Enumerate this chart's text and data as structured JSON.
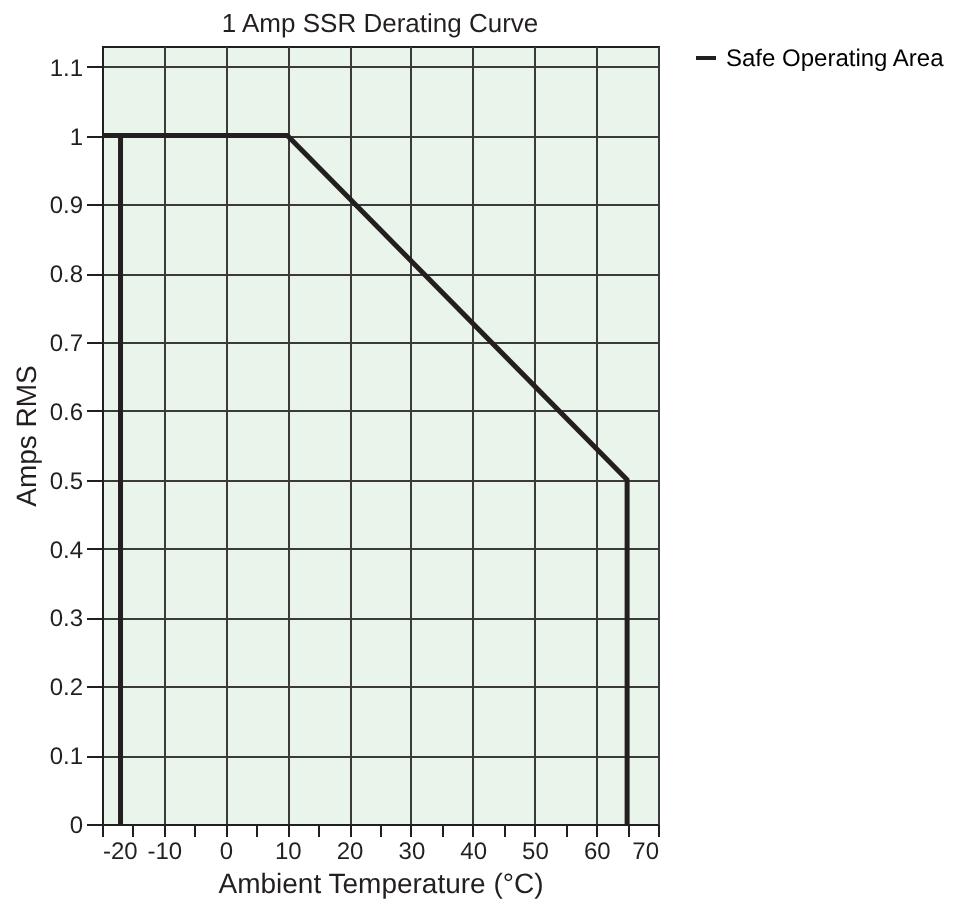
{
  "chart_data": {
    "type": "line",
    "title": "1 Amp SSR Derating Curve",
    "xlabel": "Ambient Temperature (°C)",
    "ylabel": "Amps RMS",
    "x": [
      -20,
      -17,
      -17,
      -17,
      10,
      65,
      65
    ],
    "series": [
      {
        "name": "Safe Operating Area",
        "color": "#231f20",
        "values": [
          1,
          1,
          0,
          1,
          1,
          0.5,
          0
        ]
      }
    ],
    "xlim": [
      -20,
      70
    ],
    "ylim": [
      0,
      1.13
    ],
    "xticks": [
      -20,
      {
        "value": -15,
        "label": null
      },
      -10,
      {
        "value": -5,
        "label": null
      },
      0,
      {
        "value": 5,
        "label": null
      },
      10,
      {
        "value": 15,
        "label": null
      },
      20,
      {
        "value": 25,
        "label": null
      },
      30,
      {
        "value": 35,
        "label": null
      },
      40,
      {
        "value": 45,
        "label": null
      },
      50,
      {
        "value": 55,
        "label": null
      },
      60,
      {
        "value": 65,
        "label": null
      },
      70
    ],
    "yticks": [
      0,
      0.1,
      0.2,
      0.3,
      0.4,
      0.5,
      0.6,
      0.7,
      0.8,
      0.9,
      1,
      1.1
    ],
    "grid": true,
    "legend": "right"
  }
}
